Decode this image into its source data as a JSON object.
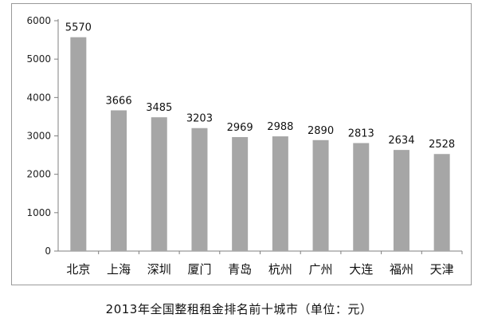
{
  "chart_data": {
    "type": "bar",
    "title": "2013年全国整租租金排名前十城市（单位：元）",
    "categories": [
      "北京",
      "上海",
      "深圳",
      "厦门",
      "青岛",
      "杭州",
      "广州",
      "大连",
      "福州",
      "天津"
    ],
    "values": [
      5570,
      3666,
      3485,
      3203,
      2969,
      2988,
      2890,
      2813,
      2634,
      2528
    ],
    "ylim": [
      0,
      6000
    ],
    "yticks": [
      0,
      1000,
      2000,
      3000,
      4000,
      5000,
      6000
    ],
    "grid": false,
    "legend": "none",
    "bar_color": "#a6a6a6"
  }
}
